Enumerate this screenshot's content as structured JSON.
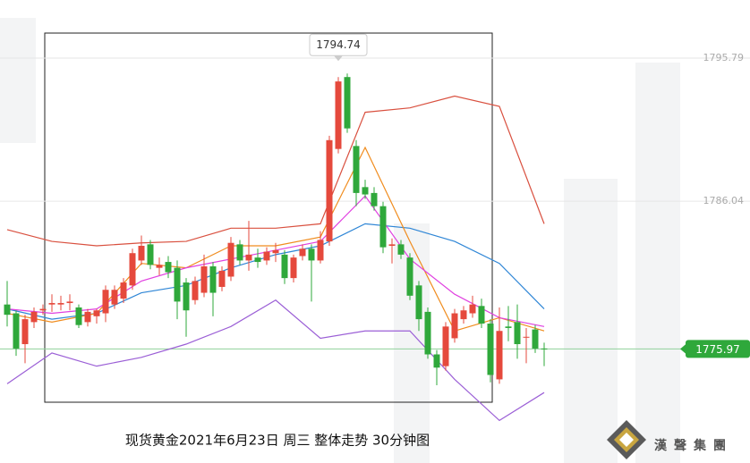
{
  "chart_data": {
    "type": "candlestick",
    "title": "现货黄金2021年6月23日 周三 整体走势 30分钟图",
    "brand": "漢聲集團",
    "ylim": [
      1768.2,
      1799.75
    ],
    "yticks": [
      1795.79,
      1786.04
    ],
    "last_price": 1775.97,
    "high_annotation": 1794.74,
    "up_color": "#e5493c",
    "down_color": "#2fa83b",
    "candles": {
      "open": [
        1779.0,
        1778.4,
        1776.3,
        1777.8,
        1778.6,
        1779.0,
        1779.0,
        1779.1,
        1778.8,
        1777.8,
        1778.2,
        1778.4,
        1779.0,
        1779.4,
        1780.3,
        1782.0,
        1783.1,
        1781.5,
        1781.9,
        1781.5,
        1780.5,
        1779.3,
        1779.8,
        1781.6,
        1780.2,
        1780.9,
        1783.1,
        1782.0,
        1782.2,
        1782.0,
        1782.5,
        1782.4,
        1780.8,
        1782.3,
        1782.8,
        1782.0,
        1783.3,
        1789.6,
        1794.5,
        1789.8,
        1787.0,
        1786.6,
        1785.7,
        1783.0,
        1783.1,
        1782.2,
        1780.3,
        1778.5,
        1775.6,
        1774.8,
        1776.7,
        1778.0,
        1778.4,
        1778.9,
        1777.7,
        1773.9,
        1777.5,
        1777.8,
        1776.8,
        1777.3,
        1776.0
      ],
      "high": [
        1780.6,
        1778.6,
        1778.3,
        1778.8,
        1779.0,
        1779.7,
        1779.6,
        1779.7,
        1779.0,
        1778.7,
        1778.7,
        1780.3,
        1780.3,
        1780.8,
        1782.8,
        1783.7,
        1783.4,
        1782.2,
        1782.3,
        1782.0,
        1780.8,
        1780.9,
        1782.4,
        1781.9,
        1781.6,
        1783.6,
        1783.4,
        1784.7,
        1782.8,
        1782.9,
        1783.2,
        1782.7,
        1782.4,
        1783.1,
        1783.1,
        1784.0,
        1790.5,
        1794.5,
        1794.74,
        1790.2,
        1787.5,
        1787.0,
        1786.0,
        1783.5,
        1783.4,
        1782.5,
        1780.6,
        1778.8,
        1775.9,
        1777.8,
        1778.7,
        1778.9,
        1779.6,
        1779.4,
        1778.0,
        1778.8,
        1778.9,
        1779.0,
        1777.4,
        1777.6,
        1776.4
      ],
      "low": [
        1777.5,
        1775.5,
        1775.0,
        1777.4,
        1778.3,
        1778.5,
        1778.6,
        1778.6,
        1777.4,
        1777.5,
        1777.7,
        1777.8,
        1778.7,
        1779.1,
        1780.0,
        1781.7,
        1781.4,
        1781.0,
        1780.8,
        1778.0,
        1776.8,
        1779.0,
        1779.5,
        1778.2,
        1779.9,
        1780.6,
        1781.7,
        1781.3,
        1781.5,
        1781.7,
        1781.9,
        1780.4,
        1780.5,
        1782.0,
        1779.2,
        1781.8,
        1783.0,
        1789.3,
        1790.7,
        1785.7,
        1786.2,
        1785.4,
        1782.5,
        1781.8,
        1782.1,
        1779.3,
        1777.2,
        1775.3,
        1773.5,
        1774.5,
        1776.4,
        1777.7,
        1778.1,
        1777.4,
        1773.7,
        1773.6,
        1776.5,
        1775.3,
        1775.0,
        1775.7,
        1774.8
      ],
      "close": [
        1778.3,
        1776.0,
        1778.0,
        1778.5,
        1778.7,
        1779.1,
        1779.1,
        1779.2,
        1777.6,
        1778.5,
        1778.6,
        1780.0,
        1780.0,
        1780.5,
        1782.5,
        1783.0,
        1781.7,
        1781.7,
        1781.2,
        1779.2,
        1778.6,
        1780.6,
        1781.6,
        1779.8,
        1781.3,
        1783.2,
        1782.0,
        1782.4,
        1781.9,
        1782.6,
        1782.7,
        1780.8,
        1782.2,
        1782.8,
        1782.0,
        1783.4,
        1790.2,
        1794.2,
        1791.0,
        1786.6,
        1786.5,
        1785.7,
        1782.9,
        1783.1,
        1782.4,
        1779.6,
        1778.0,
        1775.6,
        1774.7,
        1777.5,
        1778.4,
        1778.6,
        1779.0,
        1777.7,
        1774.2,
        1777.2,
        1777.4,
        1776.3,
        1776.8,
        1776.0,
        1775.97
      ]
    },
    "series": [
      {
        "color": "#d9503f",
        "x": [
          0,
          5,
          10,
          15,
          20,
          25,
          30,
          35,
          40,
          45,
          50,
          55,
          60
        ],
        "values": [
          1784.1,
          1783.3,
          1783.0,
          1783.2,
          1783.3,
          1784.2,
          1784.2,
          1784.5,
          1792.1,
          1792.4,
          1793.2,
          1792.5,
          1784.5
        ]
      },
      {
        "color": "#2f86d6",
        "x": [
          0,
          5,
          10,
          15,
          20,
          25,
          30,
          35,
          40,
          45,
          50,
          55,
          60
        ],
        "values": [
          1778.7,
          1778.0,
          1778.4,
          1779.8,
          1780.3,
          1781.5,
          1782.4,
          1783.0,
          1784.5,
          1784.2,
          1783.3,
          1781.8,
          1778.7
        ]
      },
      {
        "color": "#9b5fd6",
        "x": [
          0,
          5,
          10,
          15,
          20,
          25,
          30,
          35,
          40,
          45,
          50,
          55,
          60
        ],
        "values": [
          1773.6,
          1775.7,
          1774.8,
          1775.4,
          1776.3,
          1777.5,
          1779.3,
          1776.7,
          1777.2,
          1777.2,
          1773.9,
          1771.1,
          1773.0
        ]
      },
      {
        "color": "#f08c1e",
        "x": [
          0,
          5,
          10,
          15,
          20,
          25,
          30,
          35,
          40,
          45,
          50,
          55,
          60
        ],
        "values": [
          1778.4,
          1777.8,
          1778.4,
          1781.8,
          1781.5,
          1783.0,
          1783.0,
          1783.6,
          1789.7,
          1783.3,
          1777.2,
          1778.1,
          1777.2
        ]
      },
      {
        "color": "#e040e0",
        "x": [
          0,
          5,
          10,
          15,
          20,
          25,
          30,
          35,
          40,
          45,
          50,
          55,
          60
        ],
        "values": [
          1778.7,
          1778.4,
          1778.7,
          1780.6,
          1781.5,
          1782.1,
          1782.7,
          1783.3,
          1786.4,
          1782.1,
          1779.7,
          1778.1,
          1777.5
        ]
      }
    ]
  }
}
